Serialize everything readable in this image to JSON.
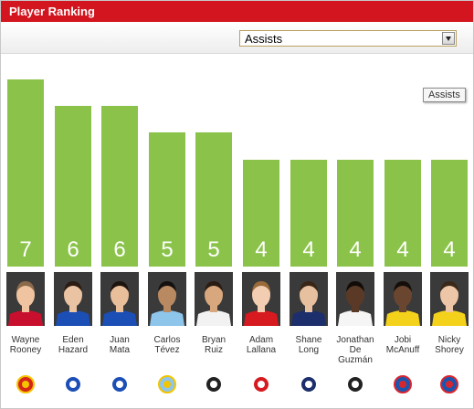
{
  "widget": {
    "title": "Player Ranking",
    "selected_stat": "Assists",
    "tooltip": "Assists"
  },
  "colors": {
    "header": "#d2151e",
    "bar": "#8bc34a",
    "bar_label": "#ffffff"
  },
  "chart_data": {
    "type": "bar",
    "title": "",
    "xlabel": "",
    "ylabel": "",
    "ylim": [
      0,
      7
    ],
    "grid": false,
    "categories": [
      "Wayne\nRooney",
      "Eden\nHazard",
      "Juan\nMata",
      "Carlos\nTévez",
      "Bryan\nRuiz",
      "Adam\nLallana",
      "Shane\nLong",
      "Jonathan\nDe\nGuzmán",
      "Jobi\nMcAnuff",
      "Nicky\nShorey"
    ],
    "values": [
      7,
      6,
      6,
      5,
      5,
      4,
      4,
      4,
      4,
      4
    ],
    "players": [
      {
        "club_crest": "manchester-united-crest-icon",
        "kit": "#c8102e",
        "skin": "#f0c4a0",
        "hair": "#8a6a4a",
        "crest_colors": [
          "#d62618",
          "#f5c400"
        ]
      },
      {
        "club_crest": "chelsea-crest-icon",
        "kit": "#1b4fb5",
        "skin": "#eac3a2",
        "hair": "#2b1b12",
        "crest_colors": [
          "#1b4fb5",
          "#ffffff"
        ]
      },
      {
        "club_crest": "chelsea-crest-icon",
        "kit": "#1b4fb5",
        "skin": "#e8bf9a",
        "hair": "#1e140e",
        "crest_colors": [
          "#1b4fb5",
          "#ffffff"
        ]
      },
      {
        "club_crest": "manchester-city-crest-icon",
        "kit": "#8ec5ea",
        "skin": "#b98a62",
        "hair": "#151010",
        "crest_colors": [
          "#8ec5ea",
          "#f2c500"
        ]
      },
      {
        "club_crest": "fulham-crest-icon",
        "kit": "#f2f2f2",
        "skin": "#d9a77d",
        "hair": "#2a1c12",
        "crest_colors": [
          "#222222",
          "#ffffff"
        ]
      },
      {
        "club_crest": "southampton-crest-icon",
        "kit": "#d71920",
        "skin": "#f2cdb2",
        "hair": "#9a6a3a",
        "crest_colors": [
          "#d71920",
          "#ffffff"
        ]
      },
      {
        "club_crest": "west-brom-crest-icon",
        "kit": "#1c2e6b",
        "skin": "#e7c0a0",
        "hair": "#3a2616",
        "crest_colors": [
          "#1c2e6b",
          "#ffffff"
        ]
      },
      {
        "club_crest": "swansea-crest-icon",
        "kit": "#f5f5f5",
        "skin": "#5a3a26",
        "hair": "#120c08",
        "crest_colors": [
          "#222222",
          "#ffffff"
        ]
      },
      {
        "club_crest": "reading-crest-icon",
        "kit": "#f4d21c",
        "skin": "#6a4630",
        "hair": "#140e0a",
        "crest_colors": [
          "#1a56b0",
          "#d8262e"
        ]
      },
      {
        "club_crest": "reading-crest-icon",
        "kit": "#f4d21c",
        "skin": "#edc6a8",
        "hair": "#3a2818",
        "crest_colors": [
          "#1a56b0",
          "#d8262e"
        ]
      }
    ]
  }
}
